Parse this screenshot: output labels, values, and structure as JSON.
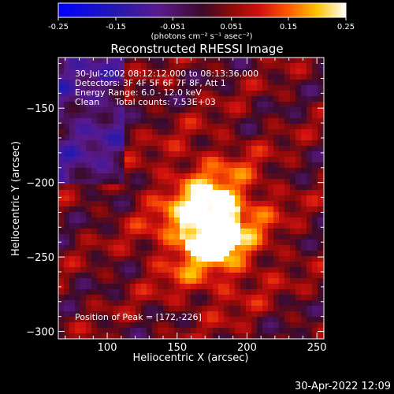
{
  "window": {
    "title": "Reconstructed RHESSI Image",
    "timestamp": "30-Apr-2022 12:09"
  },
  "colorbar": {
    "ticks": [
      "-0.25",
      "-0.15",
      "-0.051",
      "0.051",
      "0.15",
      "0.25"
    ],
    "range": [
      -0.25,
      0.25
    ],
    "unit_label": "(photons cm⁻² s⁻¹ asec⁻²)"
  },
  "annotations": {
    "time_range": "30-Jul-2002 08:12:12.000 to 08:13:36.000",
    "detectors": "Detectors: 3F 4F 5F 6F 7F 8F, Att 1",
    "energy": "Energy Range: 6.0 - 12.0 keV",
    "method": "Clean",
    "counts": "Total counts: 7.53E+03",
    "peak": "Position of Peak = [172,-226]"
  },
  "chart_data": {
    "type": "heatmap",
    "title": "Reconstructed RHESSI Image",
    "xlabel": "Heliocentric X (arcsec)",
    "ylabel": "Heliocentric Y (arcsec)",
    "xlim": [
      65,
      255
    ],
    "ylim": [
      -305,
      -116
    ],
    "x_ticks": [
      100,
      150,
      200,
      250
    ],
    "y_ticks": [
      -150,
      -200,
      -250,
      -300
    ],
    "peak_position": [
      172,
      -226
    ],
    "colormap": "hot-blue",
    "zrange": [
      -0.25,
      0.25
    ]
  }
}
